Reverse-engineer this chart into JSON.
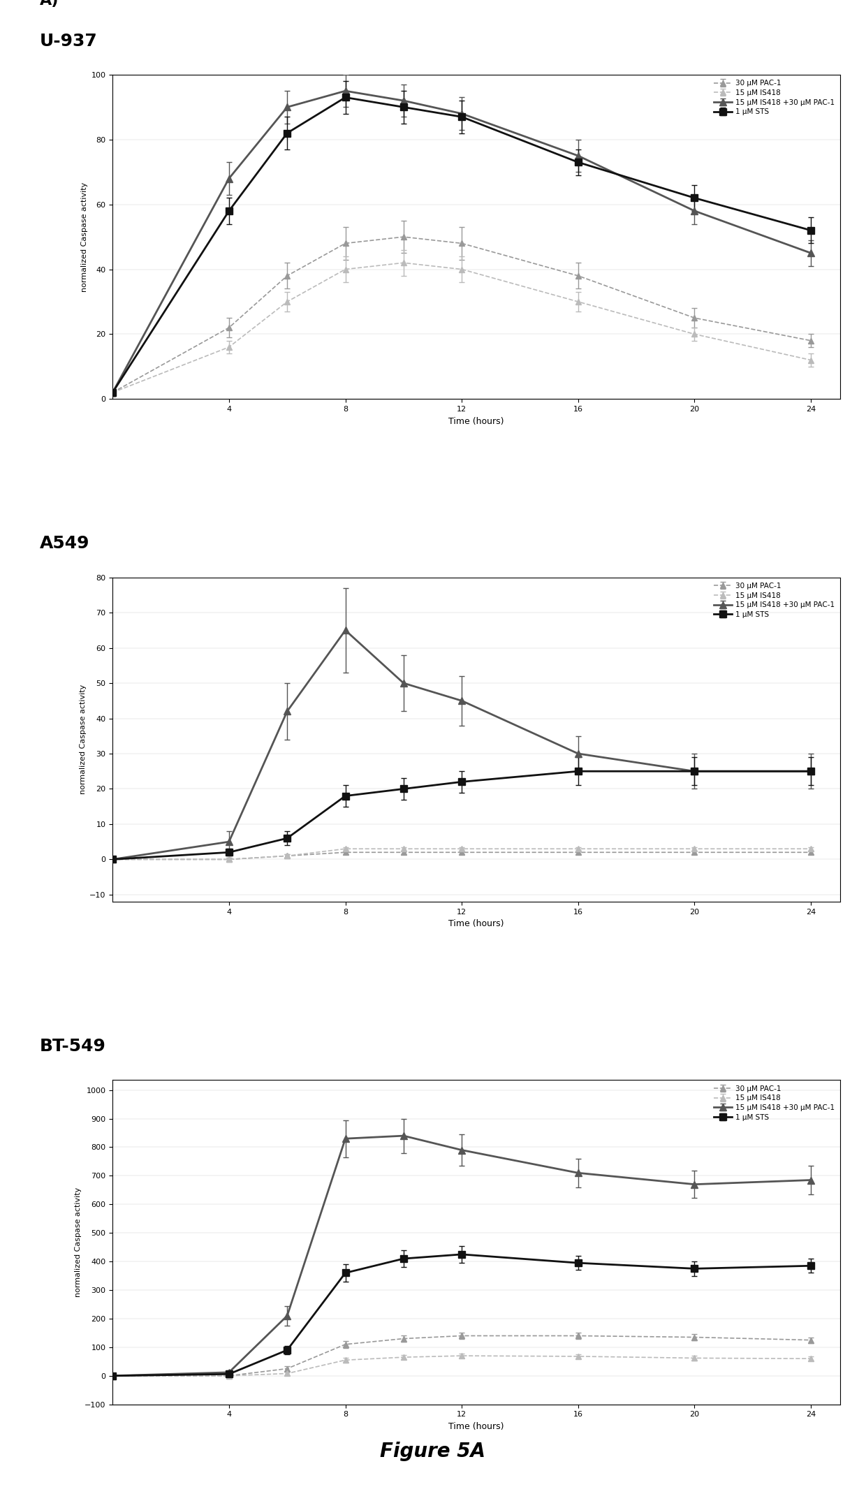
{
  "figure_title": "Figure 5A",
  "panels": [
    {
      "panel_label": "A)",
      "title": "U-937",
      "ylabel": "normalized Caspase activity",
      "xlabel": "Time (hours)",
      "xlim": [
        0,
        25
      ],
      "xticks": [
        4,
        8,
        12,
        16,
        20,
        24
      ],
      "ylim": [
        0,
        100
      ],
      "yticks": [
        0,
        20,
        40,
        60,
        80,
        100
      ],
      "legend_loc": "upper right",
      "series": [
        {
          "label": "30 μM PAC-1",
          "color": "#999999",
          "marker": "^",
          "markersize": 6,
          "linestyle": "--",
          "linewidth": 1.2,
          "x": [
            0,
            4,
            6,
            8,
            10,
            12,
            16,
            20,
            24
          ],
          "y": [
            2,
            22,
            38,
            48,
            50,
            48,
            38,
            25,
            18
          ],
          "yerr": [
            1,
            3,
            4,
            5,
            5,
            5,
            4,
            3,
            2
          ]
        },
        {
          "label": "15 μM IS418",
          "color": "#bbbbbb",
          "marker": "^",
          "markersize": 6,
          "linestyle": "--",
          "linewidth": 1.2,
          "x": [
            0,
            4,
            6,
            8,
            10,
            12,
            16,
            20,
            24
          ],
          "y": [
            2,
            16,
            30,
            40,
            42,
            40,
            30,
            20,
            12
          ],
          "yerr": [
            1,
            2,
            3,
            4,
            4,
            4,
            3,
            2,
            2
          ]
        },
        {
          "label": "15 μM IS418 +30 μM PAC-1",
          "color": "#555555",
          "marker": "^",
          "markersize": 7,
          "linestyle": "-",
          "linewidth": 2.0,
          "x": [
            0,
            4,
            6,
            8,
            10,
            12,
            16,
            20,
            24
          ],
          "y": [
            2,
            68,
            90,
            95,
            92,
            88,
            75,
            58,
            45
          ],
          "yerr": [
            1,
            5,
            5,
            5,
            5,
            5,
            5,
            4,
            4
          ]
        },
        {
          "label": "1 μM STS",
          "color": "#111111",
          "marker": "s",
          "markersize": 7,
          "linestyle": "-",
          "linewidth": 2.0,
          "x": [
            0,
            4,
            6,
            8,
            10,
            12,
            16,
            20,
            24
          ],
          "y": [
            2,
            58,
            82,
            93,
            90,
            87,
            73,
            62,
            52
          ],
          "yerr": [
            1,
            4,
            5,
            5,
            5,
            5,
            4,
            4,
            4
          ]
        }
      ]
    },
    {
      "panel_label": "",
      "title": "A549",
      "ylabel": "normalized Caspase activity",
      "xlabel": "Time (hours)",
      "xlim": [
        0,
        25
      ],
      "xticks": [
        4,
        8,
        12,
        16,
        20,
        24
      ],
      "ylim": [
        -12,
        80
      ],
      "yticks": [
        -10,
        0,
        10,
        20,
        30,
        40,
        50,
        60,
        70,
        80
      ],
      "legend_loc": "upper right",
      "series": [
        {
          "label": "30 μM PAC-1",
          "color": "#999999",
          "marker": "^",
          "markersize": 6,
          "linestyle": "--",
          "linewidth": 1.2,
          "x": [
            0,
            4,
            6,
            8,
            10,
            12,
            16,
            20,
            24
          ],
          "y": [
            0,
            0,
            1,
            2,
            2,
            2,
            2,
            2,
            2
          ],
          "yerr": [
            0.5,
            0.5,
            0.5,
            0.5,
            0.5,
            0.5,
            0.5,
            0.5,
            0.5
          ]
        },
        {
          "label": "15 μM IS418",
          "color": "#bbbbbb",
          "marker": "^",
          "markersize": 6,
          "linestyle": "--",
          "linewidth": 1.2,
          "x": [
            0,
            4,
            6,
            8,
            10,
            12,
            16,
            20,
            24
          ],
          "y": [
            0,
            0,
            1,
            3,
            3,
            3,
            3,
            3,
            3
          ],
          "yerr": [
            0.5,
            0.5,
            0.5,
            0.5,
            0.5,
            0.5,
            0.5,
            0.5,
            0.5
          ]
        },
        {
          "label": "15 μM IS418 +30 μM PAC-1",
          "color": "#555555",
          "marker": "^",
          "markersize": 7,
          "linestyle": "-",
          "linewidth": 2.0,
          "x": [
            0,
            4,
            6,
            8,
            10,
            12,
            16,
            20,
            24
          ],
          "y": [
            0,
            5,
            42,
            65,
            50,
            45,
            30,
            25,
            25
          ],
          "yerr": [
            0.5,
            3,
            8,
            12,
            8,
            7,
            5,
            5,
            5
          ]
        },
        {
          "label": "1 μM STS",
          "color": "#111111",
          "marker": "s",
          "markersize": 7,
          "linestyle": "-",
          "linewidth": 2.0,
          "x": [
            0,
            4,
            6,
            8,
            10,
            12,
            16,
            20,
            24
          ],
          "y": [
            0,
            2,
            6,
            18,
            20,
            22,
            25,
            25,
            25
          ],
          "yerr": [
            0.5,
            1,
            2,
            3,
            3,
            3,
            4,
            4,
            4
          ]
        }
      ]
    },
    {
      "panel_label": "",
      "title": "BT-549",
      "ylabel": "normalized Caspase activity",
      "xlabel": "Time (hours)",
      "xlim": [
        0,
        25
      ],
      "xticks": [
        4,
        8,
        12,
        16,
        20,
        24
      ],
      "ylim": [
        -100,
        1035
      ],
      "yticks": [
        -100,
        0,
        100,
        200,
        300,
        400,
        500,
        600,
        700,
        800,
        900,
        1000
      ],
      "legend_loc": "upper right",
      "series": [
        {
          "label": "30 μM PAC-1",
          "color": "#999999",
          "marker": "^",
          "markersize": 6,
          "linestyle": "--",
          "linewidth": 1.2,
          "x": [
            0,
            4,
            6,
            8,
            10,
            12,
            16,
            20,
            24
          ],
          "y": [
            0,
            0,
            25,
            110,
            130,
            140,
            140,
            135,
            125
          ],
          "yerr": [
            5,
            5,
            8,
            12,
            12,
            12,
            12,
            12,
            10
          ]
        },
        {
          "label": "15 μM IS418",
          "color": "#bbbbbb",
          "marker": "^",
          "markersize": 6,
          "linestyle": "--",
          "linewidth": 1.2,
          "x": [
            0,
            4,
            6,
            8,
            10,
            12,
            16,
            20,
            24
          ],
          "y": [
            0,
            0,
            8,
            55,
            65,
            70,
            68,
            62,
            60
          ],
          "yerr": [
            5,
            5,
            5,
            8,
            8,
            8,
            8,
            8,
            8
          ]
        },
        {
          "label": "15 μM IS418 +30 μM PAC-1",
          "color": "#555555",
          "marker": "^",
          "markersize": 7,
          "linestyle": "-",
          "linewidth": 2.0,
          "x": [
            0,
            4,
            6,
            8,
            10,
            12,
            16,
            20,
            24
          ],
          "y": [
            0,
            12,
            210,
            830,
            840,
            790,
            710,
            670,
            685
          ],
          "yerr": [
            5,
            8,
            35,
            65,
            60,
            55,
            50,
            48,
            50
          ]
        },
        {
          "label": "1 μM STS",
          "color": "#111111",
          "marker": "s",
          "markersize": 7,
          "linestyle": "-",
          "linewidth": 2.0,
          "x": [
            0,
            4,
            6,
            8,
            10,
            12,
            16,
            20,
            24
          ],
          "y": [
            0,
            6,
            90,
            360,
            410,
            425,
            395,
            375,
            385
          ],
          "yerr": [
            5,
            5,
            15,
            30,
            30,
            30,
            25,
            25,
            25
          ]
        }
      ]
    }
  ]
}
